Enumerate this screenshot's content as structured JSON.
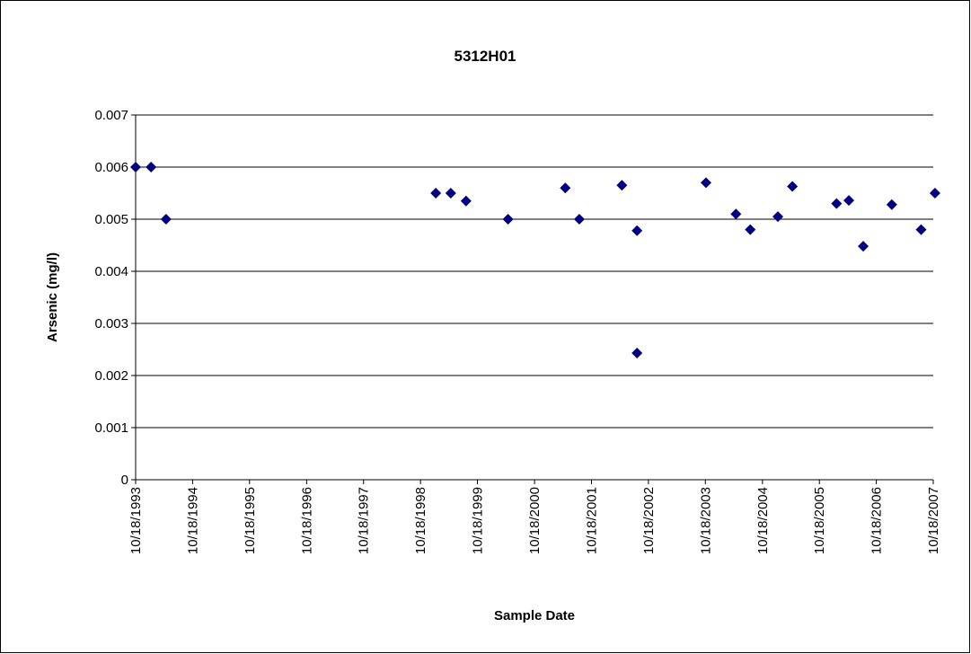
{
  "chart_data": {
    "type": "scatter",
    "title": "5312H01",
    "xlabel": "Sample Date",
    "ylabel": "Arsenic (mg/l)",
    "series": [
      {
        "name": "Arsenic",
        "color": "#000080",
        "x": [
          "1993-10-18",
          "1994-01-25",
          "1994-05-01",
          "1999-01-24",
          "1999-04-30",
          "1999-08-06",
          "2000-05-01",
          "2001-05-03",
          "2001-08-01",
          "2002-05-01",
          "2002-08-06",
          "2002-08-06",
          "2003-10-22",
          "2004-05-01",
          "2004-08-01",
          "2005-01-25",
          "2005-04-28",
          "2006-02-05",
          "2006-04-25",
          "2006-07-26",
          "2007-01-25",
          "2007-08-01",
          "2007-10-29"
        ],
        "values": [
          0.006,
          0.006,
          0.005,
          0.0055,
          0.0055,
          0.00535,
          0.005,
          0.0056,
          0.005,
          0.00565,
          0.00478,
          0.00243,
          0.0057,
          0.0051,
          0.0048,
          0.00505,
          0.00563,
          0.0053,
          0.00536,
          0.00448,
          0.00528,
          0.0048,
          0.0055
        ]
      }
    ],
    "xlim": [
      "1993-10-18",
      "2007-10-18"
    ],
    "xticks": [
      {
        "value": "1993-10-18",
        "label": "10/18/1993"
      },
      {
        "value": "1994-10-18",
        "label": "10/18/1994"
      },
      {
        "value": "1995-10-18",
        "label": "10/18/1995"
      },
      {
        "value": "1996-10-18",
        "label": "10/18/1996"
      },
      {
        "value": "1997-10-18",
        "label": "10/18/1997"
      },
      {
        "value": "1998-10-18",
        "label": "10/18/1998"
      },
      {
        "value": "1999-10-18",
        "label": "10/18/1999"
      },
      {
        "value": "2000-10-18",
        "label": "10/18/2000"
      },
      {
        "value": "2001-10-18",
        "label": "10/18/2001"
      },
      {
        "value": "2002-10-18",
        "label": "10/18/2002"
      },
      {
        "value": "2003-10-18",
        "label": "10/18/2003"
      },
      {
        "value": "2004-10-18",
        "label": "10/18/2004"
      },
      {
        "value": "2005-10-18",
        "label": "10/18/2005"
      },
      {
        "value": "2006-10-18",
        "label": "10/18/2006"
      },
      {
        "value": "2007-10-18",
        "label": "10/18/2007"
      }
    ],
    "ylim": [
      0,
      0.007
    ],
    "yticks": [
      0,
      0.001,
      0.002,
      0.003,
      0.004,
      0.005,
      0.006,
      0.007
    ],
    "grid": true
  }
}
